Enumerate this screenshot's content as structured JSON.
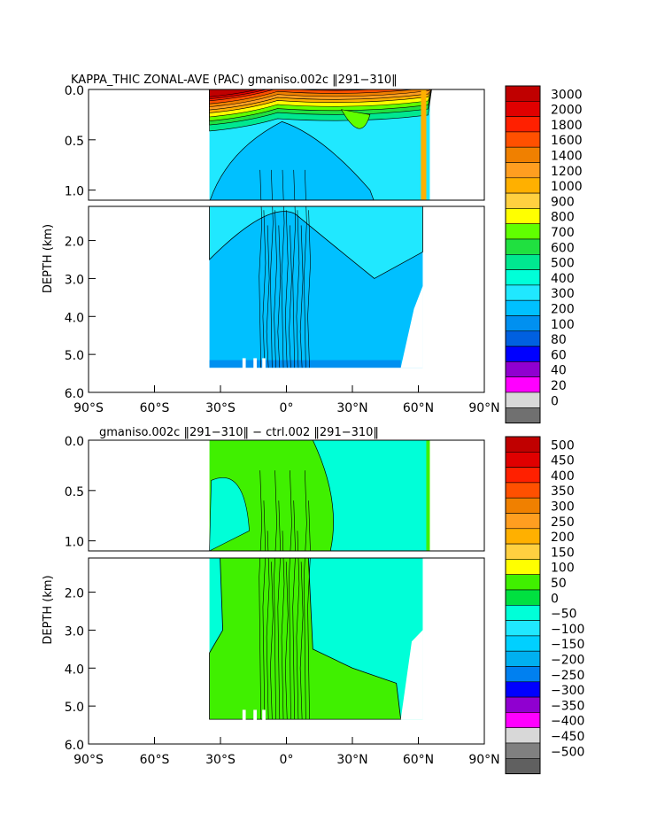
{
  "chart_data": [
    {
      "type": "heatmap",
      "title": "KAPPA_THIC ZONAL-AVE (PAC) gmaniso.002c ‖291−310‖",
      "xlabel": "",
      "ylabel": "DEPTH (km)",
      "x_ticks": [
        "90°S",
        "60°S",
        "30°S",
        "0°",
        "30°N",
        "60°N",
        "90°N"
      ],
      "y_ticks_upper": [
        "0.0",
        "0.5",
        "1.0"
      ],
      "y_ticks_lower": [
        "2.0",
        "3.0",
        "4.0",
        "5.0",
        "6.0"
      ],
      "xlim": [
        -90,
        90
      ],
      "ylim_km": [
        6.0,
        0.0
      ],
      "color_levels": [
        "3000",
        "2000",
        "1800",
        "1600",
        "1400",
        "1200",
        "1000",
        "900",
        "800",
        "700",
        "600",
        "500",
        "400",
        "300",
        "200",
        "100",
        "80",
        "60",
        "40",
        "20",
        "0"
      ],
      "colors": [
        "#c00000",
        "#e00000",
        "#ff2000",
        "#ff5000",
        "#f08000",
        "#ff9e20",
        "#ffb000",
        "#ffd040",
        "#ffff00",
        "#60ff00",
        "#20e040",
        "#00e890",
        "#00ffd8",
        "#20e8ff",
        "#00c0ff",
        "#0090f0",
        "#0060e0",
        "#0000ff",
        "#9000d0",
        "#ff00ff",
        "#d8d8d8",
        "#707070"
      ],
      "data_extent_lat": [
        -35,
        62
      ],
      "dominant_deep_value": "200-300"
    },
    {
      "type": "heatmap",
      "title": "gmaniso.002c ‖291−310‖ − ctrl.002 ‖291−310‖",
      "xlabel": "",
      "ylabel": "DEPTH (km)",
      "x_ticks": [
        "90°S",
        "60°S",
        "30°S",
        "0°",
        "30°N",
        "60°N",
        "90°N"
      ],
      "y_ticks_upper": [
        "0.0",
        "0.5",
        "1.0"
      ],
      "y_ticks_lower": [
        "2.0",
        "3.0",
        "4.0",
        "5.0",
        "6.0"
      ],
      "xlim": [
        -90,
        90
      ],
      "ylim_km": [
        6.0,
        0.0
      ],
      "color_levels": [
        "500",
        "450",
        "400",
        "350",
        "300",
        "250",
        "200",
        "150",
        "100",
        "50",
        "0",
        "−50",
        "−100",
        "−150",
        "−200",
        "−250",
        "−300",
        "−350",
        "−400",
        "−450",
        "−500"
      ],
      "colors": [
        "#c00000",
        "#e00000",
        "#ff2000",
        "#ff5000",
        "#f08000",
        "#ff9e20",
        "#ffb000",
        "#ffd040",
        "#ffff00",
        "#40f000",
        "#00e040",
        "#00ffd8",
        "#20e8ff",
        "#00d0ff",
        "#00b0f0",
        "#0080f0",
        "#0000ff",
        "#9000d0",
        "#ff00ff",
        "#d8d8d8",
        "#808080",
        "#606060"
      ],
      "data_extent_lat": [
        -35,
        62
      ],
      "dominant_values": [
        "0-50",
        "−50-0"
      ]
    }
  ]
}
